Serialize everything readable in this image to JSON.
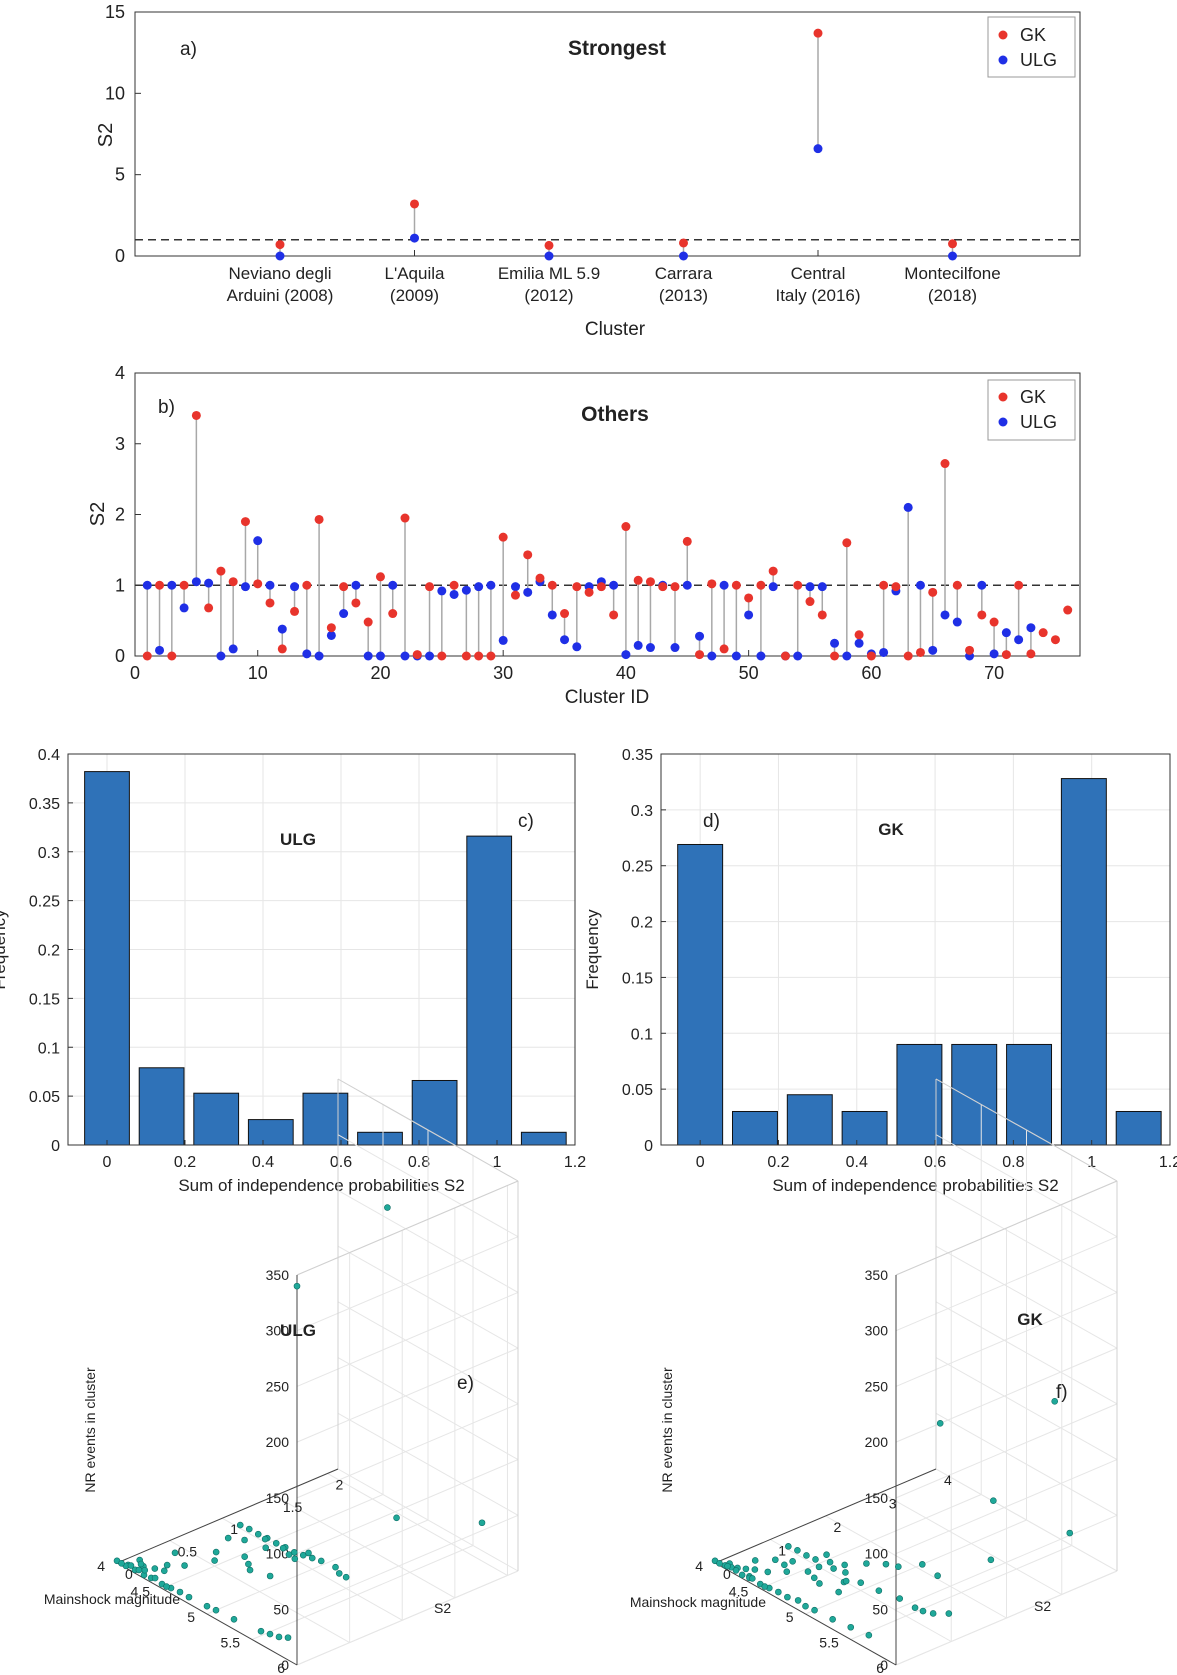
{
  "colors": {
    "gk": "#e8342c",
    "ulg": "#1f2fe6",
    "bar": "#2f72b8",
    "scatter": "#1fa899",
    "stem": "#a8a8a8",
    "axis": "#333333",
    "grid": "#e6e6e6"
  },
  "chart_data": [
    {
      "id": "a",
      "type": "scatter",
      "panel_label": "a)",
      "title": "Strongest",
      "xlabel": "Cluster",
      "ylabel": "S2",
      "ylim": [
        0,
        15
      ],
      "yticks": [
        "0",
        "5",
        "10",
        "15"
      ],
      "categories": [
        "Neviano degli|Arduini (2008)",
        "L'Aquila|(2009)",
        "Emilia ML 5.9|(2012)",
        "Carrara|(2013)",
        "Central|Italy (2016)",
        "Montecilfone|(2018)"
      ],
      "reference_line": 1,
      "legend": [
        "GK",
        "ULG"
      ],
      "legend_position": "top-right",
      "series": [
        {
          "name": "GK",
          "values": [
            0.7,
            3.2,
            0.65,
            0.8,
            13.7,
            0.75
          ]
        },
        {
          "name": "ULG",
          "values": [
            0.0,
            1.1,
            0.0,
            0.0,
            6.6,
            0.0
          ]
        }
      ]
    },
    {
      "id": "b",
      "type": "scatter",
      "panel_label": "b)",
      "title": "Others",
      "xlabel": "Cluster ID",
      "ylabel": "S2",
      "xlim": [
        0,
        77
      ],
      "ylim": [
        0,
        4
      ],
      "xticks": [
        "0",
        "10",
        "20",
        "30",
        "40",
        "50",
        "60",
        "70"
      ],
      "yticks": [
        "0",
        "1",
        "2",
        "3",
        "4"
      ],
      "reference_line": 1,
      "legend": [
        "GK",
        "ULG"
      ],
      "legend_position": "top-right",
      "series": [
        {
          "name": "GK",
          "values": [
            0.0,
            1.0,
            0.0,
            1.0,
            3.4,
            0.68,
            1.2,
            1.05,
            1.9,
            1.02,
            0.75,
            0.1,
            0.63,
            1.0,
            1.93,
            0.4,
            0.98,
            0.75,
            0.48,
            1.12,
            0.6,
            1.95,
            0.02,
            0.98,
            0.0,
            1.0,
            0.0,
            0.0,
            0.0,
            1.68,
            0.86,
            1.43,
            1.1,
            1.0,
            0.6,
            0.98,
            0.9,
            0.98,
            0.58,
            1.83,
            1.07,
            1.05,
            0.98,
            0.98,
            1.62,
            0.02,
            1.02,
            0.1,
            1.0,
            0.82,
            1.0,
            1.2,
            0.0,
            1.0,
            0.77,
            0.58,
            0.0,
            1.6,
            0.3,
            0.0,
            1.0,
            0.98,
            0.0,
            0.05,
            0.9,
            2.72,
            1.0,
            0.08,
            0.58,
            0.48,
            0.02,
            1.0,
            0.03,
            0.33,
            0.23,
            0.65
          ]
        },
        {
          "name": "ULG",
          "values": [
            1.0,
            0.08,
            1.0,
            0.68,
            1.05,
            1.03,
            0.0,
            0.1,
            0.98,
            1.63,
            1.0,
            0.38,
            0.98,
            0.03,
            0.0,
            0.29,
            0.6,
            1.0,
            0.0,
            0.0,
            1.0,
            0.0,
            0.0,
            0.0,
            0.92,
            0.87,
            0.93,
            0.98,
            1.0,
            0.22,
            0.98,
            0.9,
            1.05,
            0.58,
            0.23,
            0.13,
            0.98,
            1.05,
            1.0,
            0.02,
            0.15,
            0.12,
            1.0,
            0.12,
            1.0,
            0.28,
            0.0,
            1.0,
            0.0,
            0.58,
            0.0,
            0.98,
            0.0,
            0.0,
            0.98,
            0.98,
            0.18,
            0.0,
            0.18,
            0.03,
            0.05,
            0.92,
            2.1,
            1.0,
            0.08,
            0.58,
            0.48,
            0.0,
            1.0,
            0.03,
            0.33,
            0.23,
            0.4
          ]
        }
      ]
    },
    {
      "id": "c",
      "type": "bar",
      "panel_label": "c)",
      "title": "ULG",
      "xlabel": "Sum of independence probabilities S2",
      "ylabel": "Frequency",
      "xlim": [
        -0.1,
        1.2
      ],
      "ylim": [
        0,
        0.4
      ],
      "bin_width": 0.14,
      "x": [
        0.0,
        0.14,
        0.28,
        0.42,
        0.56,
        0.7,
        0.84,
        0.98,
        1.12
      ],
      "values": [
        0.382,
        0.079,
        0.053,
        0.026,
        0.053,
        0.013,
        0.066,
        0.316,
        0.013
      ],
      "xticks": [
        "0",
        "0.2",
        "0.4",
        "0.6",
        "0.8",
        "1",
        "1.2"
      ],
      "yticks": [
        "0",
        "0.05",
        "0.1",
        "0.15",
        "0.2",
        "0.25",
        "0.3",
        "0.35",
        "0.4"
      ]
    },
    {
      "id": "d",
      "type": "bar",
      "panel_label": "d)",
      "title": "GK",
      "xlabel": "Sum of independence probabilities S2",
      "ylabel": "Frequency",
      "xlim": [
        -0.1,
        1.2
      ],
      "ylim": [
        0,
        0.35
      ],
      "bin_width": 0.14,
      "x": [
        0.0,
        0.14,
        0.28,
        0.42,
        0.56,
        0.7,
        0.84,
        0.98,
        1.12
      ],
      "values": [
        0.269,
        0.03,
        0.045,
        0.03,
        0.09,
        0.09,
        0.09,
        0.328,
        0.03
      ],
      "xticks": [
        "0",
        "0.2",
        "0.4",
        "0.6",
        "0.8",
        "1",
        "1.2"
      ],
      "yticks": [
        "0",
        "0.05",
        "0.1",
        "0.15",
        "0.2",
        "0.25",
        "0.3",
        "0.35"
      ]
    },
    {
      "id": "e",
      "type": "scatter",
      "panel_label": "e)",
      "title": "ULG",
      "xlabel": "Mainshock magnitude",
      "ylabel": "S2",
      "zlabel": "NR events in cluster",
      "mag_range": [
        4,
        6
      ],
      "s2_range": [
        0,
        2.1
      ],
      "nr_range": [
        0,
        350
      ],
      "mag_ticks": [
        "4",
        "4.5",
        "5",
        "5.5",
        "6"
      ],
      "s2_ticks": [
        "0",
        "0.5",
        "1",
        "1.5",
        "2"
      ],
      "nr_ticks": [
        "0",
        "50",
        "100",
        "150",
        "200",
        "250",
        "300",
        "350"
      ],
      "points": [
        [
          6.0,
          0.0,
          340
        ],
        [
          5.8,
          1.03,
          360
        ],
        [
          5.2,
          1.63,
          30
        ],
        [
          5.6,
          2.1,
          25
        ],
        [
          5.1,
          1.0,
          12
        ],
        [
          5.0,
          1.0,
          10
        ],
        [
          4.9,
          1.0,
          8
        ],
        [
          4.8,
          1.0,
          6
        ],
        [
          4.7,
          1.0,
          6
        ],
        [
          4.6,
          1.0,
          5
        ],
        [
          4.5,
          1.0,
          5
        ],
        [
          4.4,
          1.0,
          4
        ],
        [
          4.3,
          1.0,
          4
        ],
        [
          4.2,
          1.0,
          3
        ],
        [
          5.3,
          1.0,
          10
        ],
        [
          5.4,
          0.98,
          12
        ],
        [
          4.6,
          0.9,
          5
        ],
        [
          4.9,
          0.92,
          8
        ],
        [
          4.4,
          0.87,
          4
        ],
        [
          4.3,
          0.8,
          4
        ],
        [
          5.0,
          0.6,
          10
        ],
        [
          4.8,
          0.58,
          7
        ],
        [
          4.5,
          0.5,
          5
        ],
        [
          4.2,
          0.38,
          3
        ],
        [
          4.4,
          0.3,
          4
        ],
        [
          4.3,
          0.22,
          3
        ],
        [
          4.1,
          0.13,
          2
        ],
        [
          4.2,
          0.08,
          3
        ],
        [
          4.1,
          0.02,
          2
        ],
        [
          4.0,
          0.0,
          2
        ],
        [
          4.3,
          0.0,
          3
        ],
        [
          4.5,
          0.0,
          4
        ],
        [
          4.6,
          0.0,
          5
        ],
        [
          4.8,
          0.0,
          6
        ],
        [
          5.0,
          0.0,
          7
        ],
        [
          5.3,
          0.0,
          9
        ],
        [
          5.6,
          0.0,
          12
        ],
        [
          5.7,
          0.0,
          14
        ],
        [
          5.8,
          0.0,
          16
        ],
        [
          4.2,
          0.0,
          3
        ],
        [
          4.25,
          0.05,
          3
        ],
        [
          4.15,
          0.1,
          2
        ],
        [
          4.35,
          0.15,
          3
        ],
        [
          4.1,
          0.0,
          2
        ],
        [
          4.05,
          0.0,
          2
        ],
        [
          4.12,
          0.03,
          2
        ],
        [
          4.22,
          0.02,
          3
        ],
        [
          4.28,
          0.12,
          3
        ],
        [
          4.38,
          0.0,
          4
        ],
        [
          4.55,
          0.0,
          4
        ],
        [
          5.9,
          0.0,
          20
        ],
        [
          5.1,
          0.0,
          8
        ],
        [
          4.7,
          0.0,
          6
        ],
        [
          4.4,
          0.02,
          4
        ],
        [
          4.9,
          1.05,
          8
        ],
        [
          5.2,
          1.05,
          9
        ],
        [
          4.7,
          0.98,
          6
        ],
        [
          4.8,
          0.95,
          6
        ],
        [
          4.5,
          0.98,
          5
        ],
        [
          4.6,
          0.7,
          5
        ],
        [
          4.7,
          0.65,
          5
        ],
        [
          4.4,
          0.6,
          4
        ]
      ]
    },
    {
      "id": "f",
      "type": "scatter",
      "panel_label": "f)",
      "title": "GK",
      "xlabel": "Mainshock magnitude",
      "ylabel": "S2",
      "zlabel": "NR events in cluster",
      "mag_range": [
        4,
        6
      ],
      "s2_range": [
        0,
        4
      ],
      "nr_range": [
        0,
        350
      ],
      "mag_ticks": [
        "4",
        "4.5",
        "5",
        "5.5",
        "6"
      ],
      "s2_ticks": [
        "0",
        "1",
        "2",
        "3",
        "4"
      ],
      "nr_ticks": [
        "0",
        "50",
        "100",
        "150",
        "200",
        "250",
        "300",
        "350"
      ],
      "points": [
        [
          6.0,
          0.8,
          200
        ],
        [
          5.8,
          3.2,
          160
        ],
        [
          5.0,
          3.4,
          30
        ],
        [
          5.6,
          3.8,
          20
        ],
        [
          5.4,
          2.7,
          10
        ],
        [
          5.3,
          1.9,
          8
        ],
        [
          5.1,
          1.95,
          8
        ],
        [
          5.0,
          1.68,
          7
        ],
        [
          4.9,
          1.62,
          6
        ],
        [
          4.8,
          1.43,
          6
        ],
        [
          4.7,
          1.2,
          5
        ],
        [
          4.6,
          1.1,
          5
        ],
        [
          4.5,
          1.0,
          5
        ],
        [
          4.4,
          1.0,
          4
        ],
        [
          4.3,
          1.0,
          4
        ],
        [
          4.2,
          1.0,
          3
        ],
        [
          5.2,
          1.0,
          9
        ],
        [
          5.4,
          1.05,
          10
        ],
        [
          5.6,
          1.0,
          12
        ],
        [
          5.7,
          0.98,
          14
        ],
        [
          5.8,
          1.0,
          16
        ],
        [
          5.9,
          1.12,
          18
        ],
        [
          4.6,
          0.9,
          5
        ],
        [
          4.9,
          0.86,
          6
        ],
        [
          4.4,
          0.75,
          4
        ],
        [
          4.3,
          0.6,
          4
        ],
        [
          5.0,
          0.6,
          7
        ],
        [
          4.8,
          0.58,
          6
        ],
        [
          4.5,
          0.48,
          5
        ],
        [
          4.2,
          0.4,
          3
        ],
        [
          4.4,
          0.3,
          4
        ],
        [
          4.3,
          0.23,
          3
        ],
        [
          4.1,
          0.1,
          2
        ],
        [
          4.2,
          0.08,
          3
        ],
        [
          4.1,
          0.02,
          2
        ],
        [
          4.0,
          0.0,
          2
        ],
        [
          4.3,
          0.0,
          3
        ],
        [
          4.5,
          0.0,
          4
        ],
        [
          4.6,
          0.0,
          5
        ],
        [
          4.8,
          0.0,
          6
        ],
        [
          5.0,
          0.0,
          7
        ],
        [
          5.3,
          0.0,
          9
        ],
        [
          5.5,
          0.0,
          11
        ],
        [
          5.7,
          0.0,
          13
        ],
        [
          4.15,
          0.05,
          2
        ],
        [
          4.25,
          0.15,
          3
        ],
        [
          4.35,
          0.05,
          3
        ],
        [
          4.05,
          0.0,
          2
        ],
        [
          4.12,
          0.03,
          2
        ],
        [
          4.22,
          0.02,
          3
        ],
        [
          4.38,
          0.0,
          4
        ],
        [
          4.55,
          0.0,
          4
        ],
        [
          4.7,
          0.0,
          6
        ],
        [
          4.9,
          0.03,
          7
        ],
        [
          5.1,
          0.0,
          8
        ],
        [
          4.4,
          0.02,
          4
        ],
        [
          4.7,
          1.0,
          6
        ],
        [
          4.8,
          1.05,
          6
        ],
        [
          4.5,
          1.2,
          5
        ],
        [
          4.6,
          0.7,
          5
        ],
        [
          4.7,
          0.65,
          5
        ],
        [
          4.4,
          0.6,
          4
        ],
        [
          4.9,
          0.9,
          6
        ],
        [
          5.0,
          1.0,
          7
        ]
      ]
    }
  ]
}
